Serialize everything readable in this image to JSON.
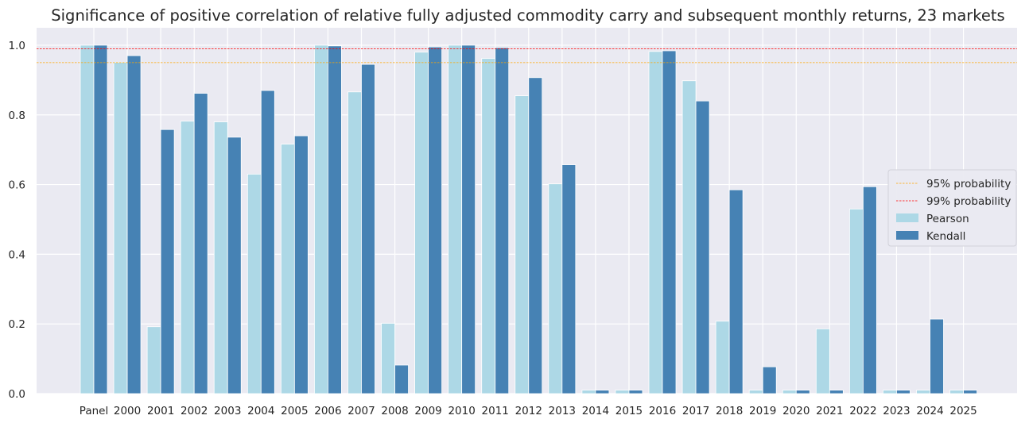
{
  "chart_data": {
    "type": "bar",
    "title": "Significance of positive correlation of relative fully adjusted commodity carry and subsequent monthly returns, 23 markets",
    "xlabel": "",
    "ylabel": "",
    "ylim": [
      0,
      1.05
    ],
    "yticks": [
      "0.0",
      "0.2",
      "0.4",
      "0.6",
      "0.8",
      "1.0"
    ],
    "ytick_values": [
      0,
      0.2,
      0.4,
      0.6,
      0.8,
      1.0
    ],
    "grid": true,
    "legend_position": "center-right",
    "categories": [
      "Panel",
      "2000",
      "2001",
      "2002",
      "2003",
      "2004",
      "2005",
      "2006",
      "2007",
      "2008",
      "2009",
      "2010",
      "2011",
      "2012",
      "2013",
      "2014",
      "2015",
      "2016",
      "2017",
      "2018",
      "2019",
      "2020",
      "2021",
      "2022",
      "2023",
      "2024",
      "2025"
    ],
    "series": [
      {
        "name": "Pearson",
        "color": "#add8e6",
        "values": [
          1.0,
          0.951,
          0.192,
          0.782,
          0.78,
          0.63,
          0.716,
          1.0,
          0.866,
          0.202,
          0.98,
          1.0,
          0.962,
          0.855,
          0.602,
          0.01,
          0.01,
          0.982,
          0.898,
          0.208,
          0.01,
          0.01,
          0.186,
          0.53,
          0.01,
          0.01,
          0.01
        ]
      },
      {
        "name": "Kendall",
        "color": "#4682b4",
        "values": [
          1.0,
          0.97,
          0.758,
          0.862,
          0.736,
          0.87,
          0.74,
          0.998,
          0.945,
          0.082,
          0.995,
          1.0,
          0.993,
          0.907,
          0.657,
          0.01,
          0.01,
          0.984,
          0.84,
          0.585,
          0.077,
          0.01,
          0.01,
          0.594,
          0.01,
          0.214,
          0.01
        ]
      }
    ],
    "reference_lines": [
      {
        "name": "95% probability",
        "value": 0.95,
        "color": "#ffa500"
      },
      {
        "name": "99% probability",
        "value": 0.99,
        "color": "#ff0000"
      }
    ]
  }
}
